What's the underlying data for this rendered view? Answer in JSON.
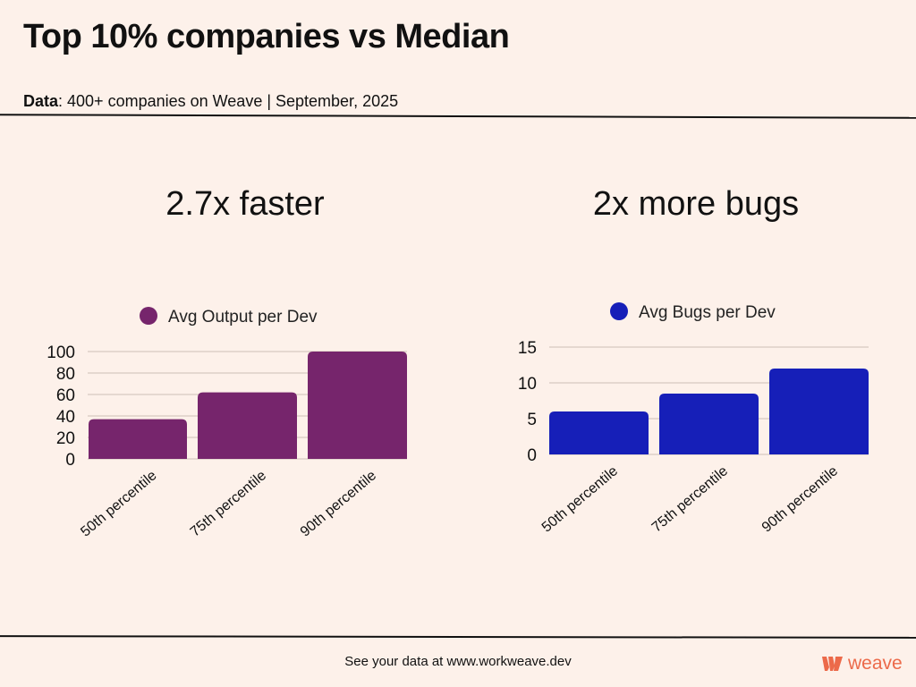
{
  "header": {
    "title": "Top 10% companies vs Median",
    "subtitle_label": "Data",
    "subtitle_text": ": 400+ companies on Weave | September, 2025"
  },
  "footer": {
    "text": "See your data at www.workweave.dev",
    "logo_text": "weave"
  },
  "colors": {
    "output": "#76256c",
    "bugs": "#161fb8",
    "brand": "#ec6a4a",
    "background": "#fdf1ea"
  },
  "chart_data": [
    {
      "type": "bar",
      "title": "2.7x faster",
      "legend": "Avg Output per Dev",
      "legend_position": "top-center",
      "categories": [
        "50th percentile",
        "75th percentile",
        "90th percentile"
      ],
      "values": [
        37,
        62,
        100
      ],
      "yticks": [
        "0",
        "20",
        "40",
        "60",
        "80",
        "100"
      ],
      "ylim": [
        0,
        100
      ],
      "grid": true,
      "color": "#76256c"
    },
    {
      "type": "bar",
      "title": "2x more bugs",
      "legend": "Avg Bugs per Dev",
      "legend_position": "top-center",
      "categories": [
        "50th percentile",
        "75th percentile",
        "90th percentile"
      ],
      "values": [
        6,
        8.5,
        12
      ],
      "yticks": [
        "0",
        "5",
        "10",
        "15"
      ],
      "ylim": [
        0,
        15
      ],
      "grid": true,
      "color": "#161fb8"
    }
  ]
}
